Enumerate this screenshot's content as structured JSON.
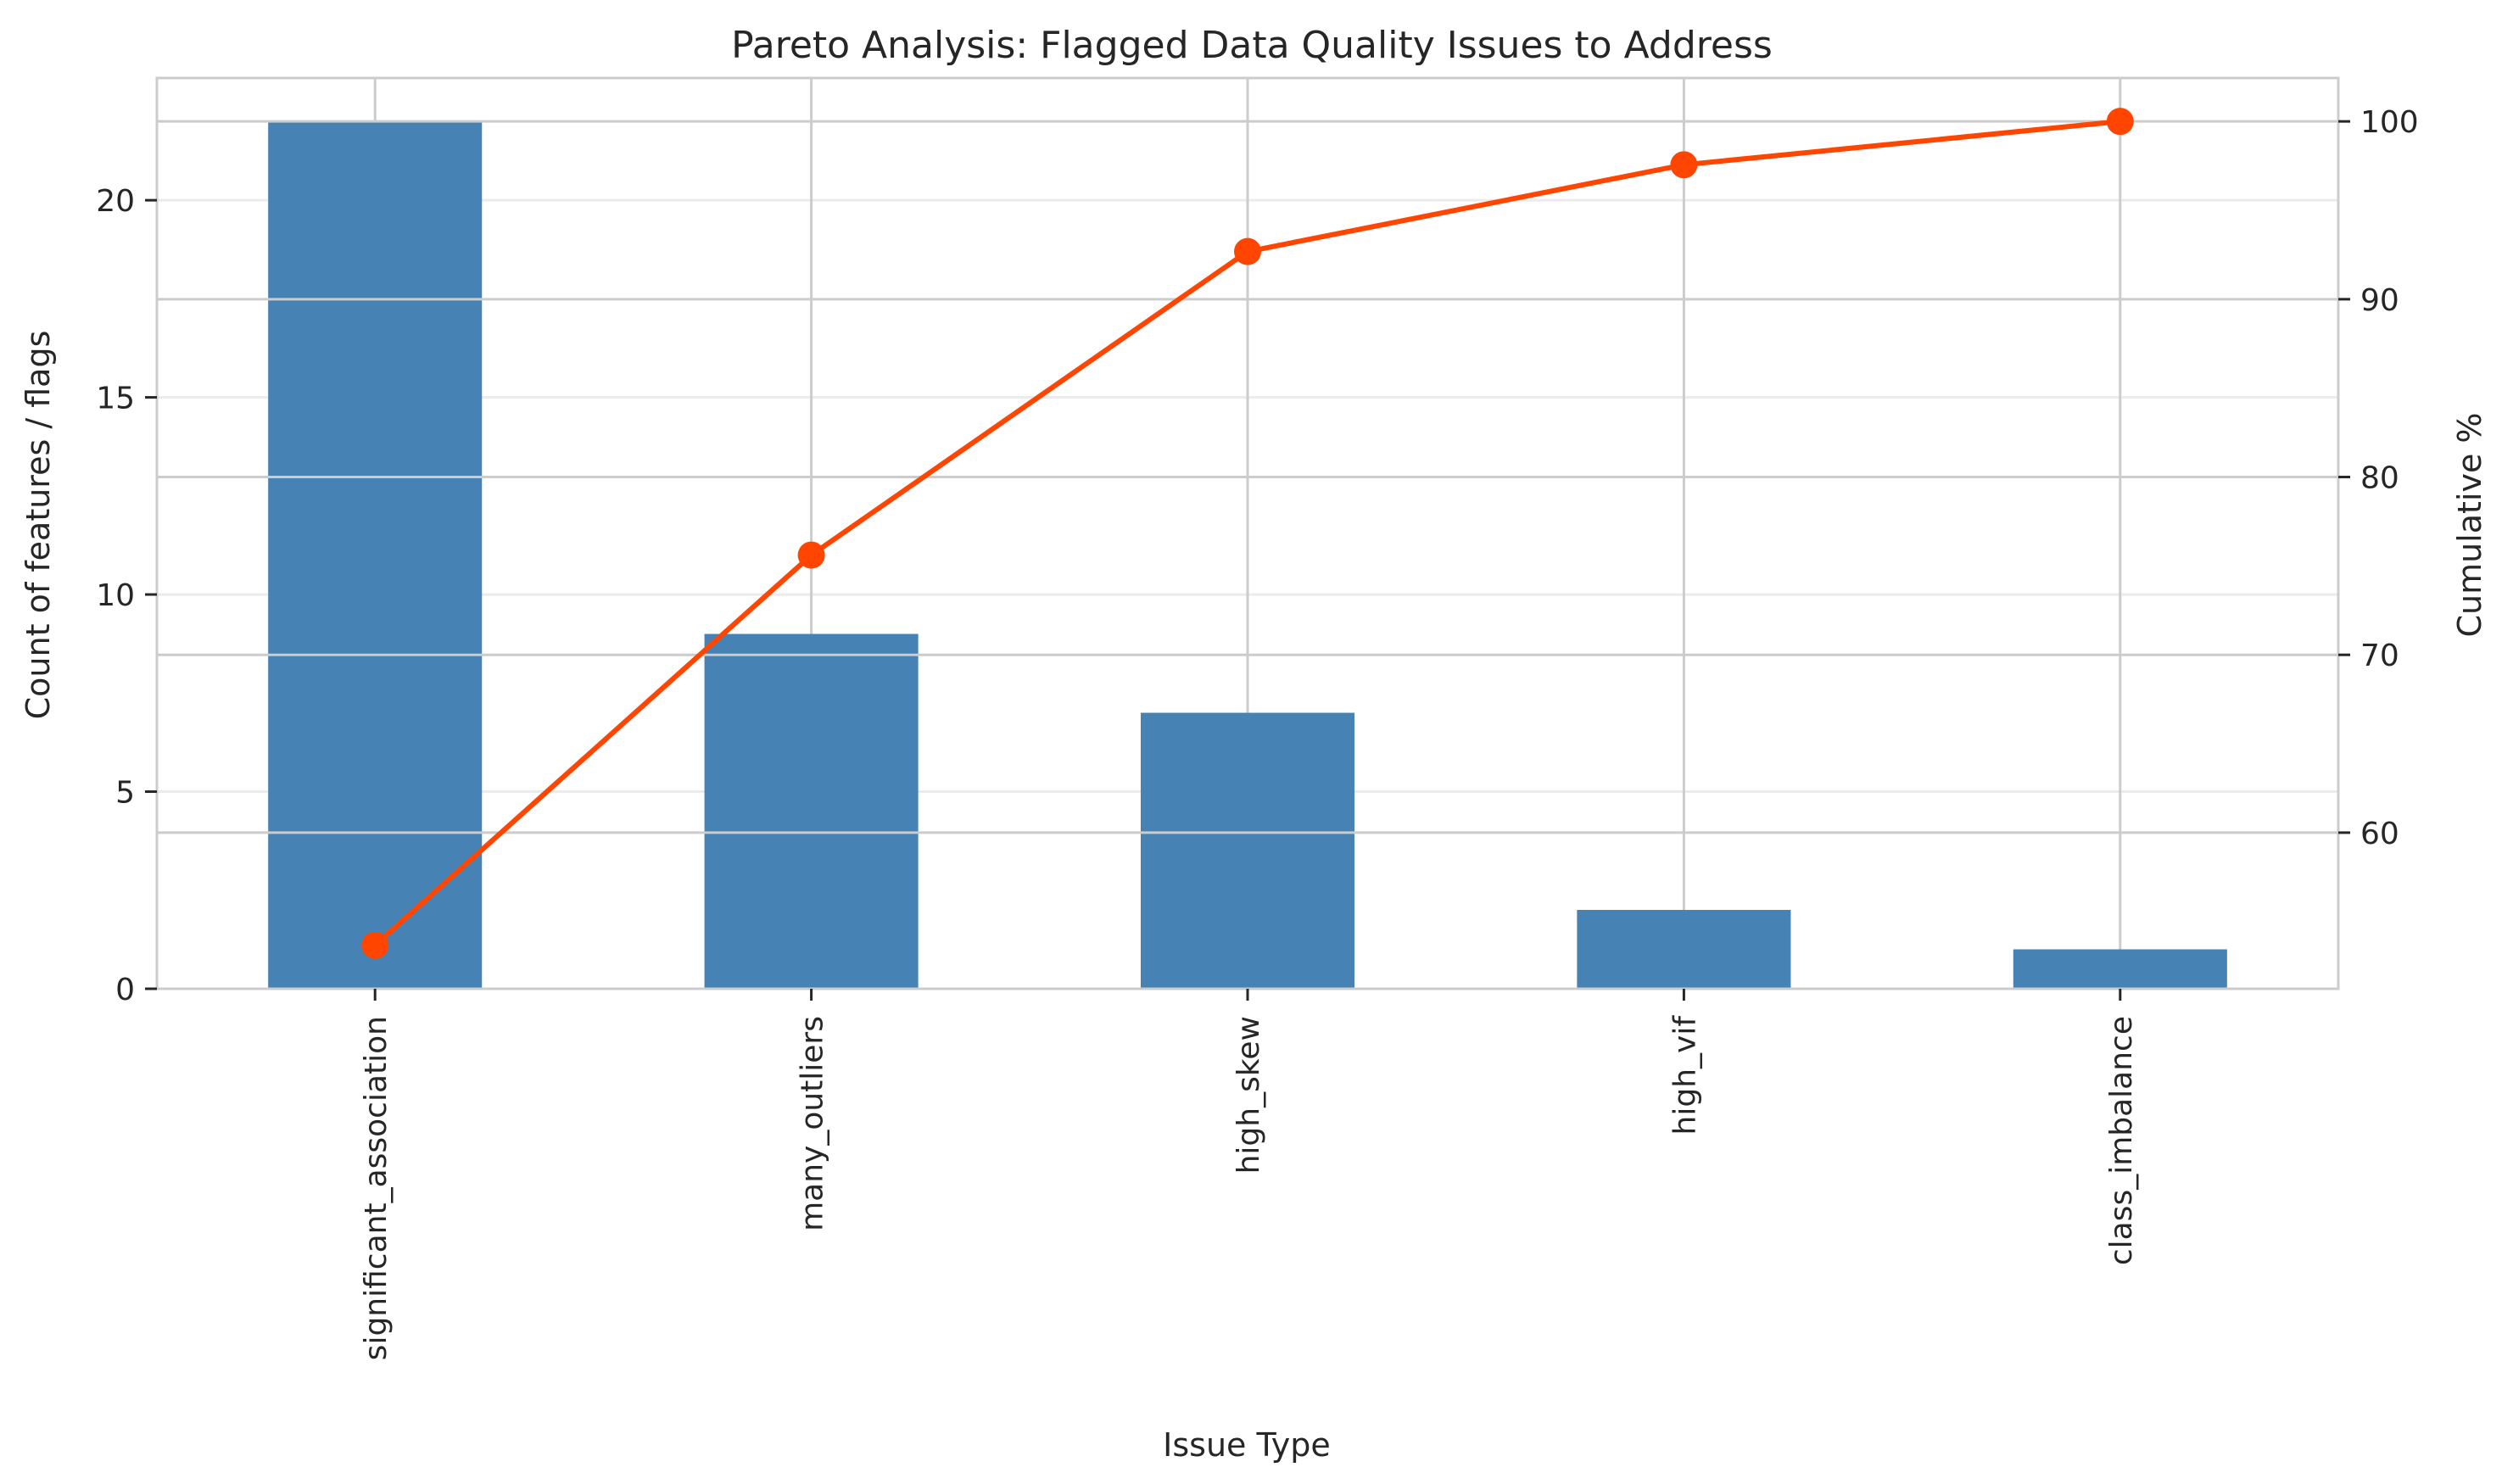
{
  "chart_data": {
    "type": "bar",
    "title": "Pareto Analysis: Flagged Data Quality Issues to Address",
    "xlabel": "Issue Type",
    "ylabel": "Count of features / flags",
    "y2label": "Cumulative %",
    "categories": [
      "significant_association",
      "many_outliers",
      "high_skew",
      "high_vif",
      "class_imbalance"
    ],
    "series": [
      {
        "type": "bar",
        "axis": "left",
        "values": [
          22,
          9,
          7,
          2,
          1
        ],
        "color": "#4682b4"
      },
      {
        "type": "line",
        "axis": "right",
        "values": [
          53.66,
          75.61,
          92.68,
          97.56,
          100.0
        ],
        "color": "#ff4500"
      }
    ],
    "ylim": [
      0,
      23.1
    ],
    "yticks": [
      0,
      5,
      10,
      15,
      20
    ],
    "y2lim": [
      51.22,
      102.44
    ],
    "y2ticks": [
      60,
      70,
      80,
      90,
      100
    ],
    "grid": true,
    "legend": "none"
  }
}
